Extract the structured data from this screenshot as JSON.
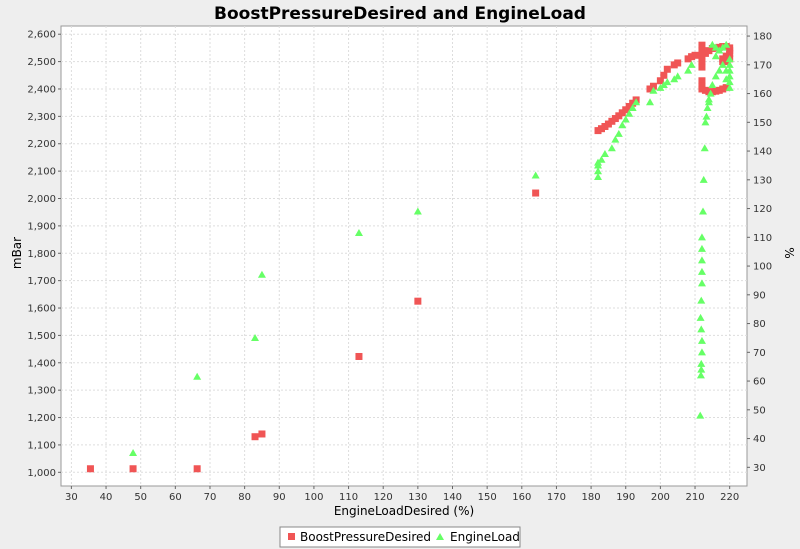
{
  "chart_data": {
    "type": "scatter",
    "title": "BoostPressureDesired and EngineLoad",
    "xlabel": "EngineLoadDesired (%)",
    "ylabel_left": "mBar",
    "ylabel_right": "%",
    "xlim": [
      27,
      225
    ],
    "ylim_left": [
      950,
      2630
    ],
    "ylim_right": [
      23.5,
      183.5
    ],
    "x_ticks": [
      "30",
      "40",
      "50",
      "60",
      "70",
      "80",
      "90",
      "100",
      "110",
      "120",
      "130",
      "140",
      "150",
      "160",
      "170",
      "180",
      "190",
      "200",
      "210",
      "220"
    ],
    "y_left_ticks": [
      "1,000",
      "1,100",
      "1,200",
      "1,300",
      "1,400",
      "1,500",
      "1,600",
      "1,700",
      "1,800",
      "1,900",
      "2,000",
      "2,100",
      "2,200",
      "2,300",
      "2,400",
      "2,500",
      "2,600"
    ],
    "y_right_ticks": [
      "30",
      "40",
      "50",
      "60",
      "70",
      "80",
      "90",
      "100",
      "110",
      "120",
      "130",
      "140",
      "150",
      "160",
      "170",
      "180"
    ],
    "grid": true,
    "legend_position": "bottom",
    "series": [
      {
        "name": "BoostPressureDesired",
        "axis": "left",
        "marker": "square",
        "color": "#f05555",
        "points": [
          [
            35.5,
            1013
          ],
          [
            47.8,
            1013
          ],
          [
            66.3,
            1013
          ],
          [
            83,
            1130
          ],
          [
            85,
            1140
          ],
          [
            113,
            1423
          ],
          [
            130,
            1625
          ],
          [
            164,
            2020
          ],
          [
            182,
            2248
          ],
          [
            183,
            2255
          ],
          [
            184,
            2263
          ],
          [
            185,
            2272
          ],
          [
            186,
            2282
          ],
          [
            187,
            2292
          ],
          [
            188,
            2302
          ],
          [
            189,
            2313
          ],
          [
            190,
            2324
          ],
          [
            191,
            2336
          ],
          [
            192,
            2348
          ],
          [
            193,
            2360
          ],
          [
            197,
            2400
          ],
          [
            198,
            2410
          ],
          [
            200,
            2430
          ],
          [
            201,
            2450
          ],
          [
            202,
            2472
          ],
          [
            204,
            2488
          ],
          [
            205,
            2495
          ],
          [
            208,
            2510
          ],
          [
            209,
            2518
          ],
          [
            210,
            2523
          ],
          [
            212,
            2560
          ],
          [
            212,
            2540
          ],
          [
            212,
            2520
          ],
          [
            212,
            2500
          ],
          [
            212,
            2480
          ],
          [
            212,
            2430
          ],
          [
            212,
            2410
          ],
          [
            212,
            2400
          ],
          [
            213,
            2395
          ],
          [
            214,
            2390
          ],
          [
            215,
            2390
          ],
          [
            216,
            2392
          ],
          [
            217,
            2395
          ],
          [
            218,
            2400
          ],
          [
            219,
            2405
          ],
          [
            213,
            2530
          ],
          [
            214,
            2540
          ],
          [
            215,
            2548
          ],
          [
            216,
            2550
          ],
          [
            217,
            2552
          ],
          [
            218,
            2555
          ],
          [
            219,
            2555
          ],
          [
            220,
            2550
          ],
          [
            220,
            2540
          ],
          [
            220,
            2530
          ],
          [
            219,
            2520
          ],
          [
            218,
            2510
          ],
          [
            218,
            2500
          ],
          [
            219,
            2500
          ],
          [
            220,
            2510
          ]
        ]
      },
      {
        "name": "EngineLoad",
        "axis": "right",
        "marker": "triangle",
        "color": "#66ff66",
        "points": [
          [
            47.8,
            35
          ],
          [
            66.3,
            61.5
          ],
          [
            83,
            75
          ],
          [
            85,
            97
          ],
          [
            113,
            111.5
          ],
          [
            130,
            119
          ],
          [
            164,
            131.5
          ],
          [
            182,
            131
          ],
          [
            182,
            133
          ],
          [
            182,
            135
          ],
          [
            182,
            136
          ],
          [
            183,
            137
          ],
          [
            184,
            139
          ],
          [
            186,
            141
          ],
          [
            187,
            144
          ],
          [
            188,
            146
          ],
          [
            189,
            149
          ],
          [
            190,
            151
          ],
          [
            191,
            153
          ],
          [
            192,
            155
          ],
          [
            193,
            157
          ],
          [
            197,
            157
          ],
          [
            198,
            161
          ],
          [
            200,
            162
          ],
          [
            201,
            163
          ],
          [
            202,
            164
          ],
          [
            204,
            165
          ],
          [
            205,
            166
          ],
          [
            208,
            168
          ],
          [
            209,
            170
          ],
          [
            211.5,
            48
          ],
          [
            211.7,
            62
          ],
          [
            211.8,
            64
          ],
          [
            211.8,
            66
          ],
          [
            212,
            70
          ],
          [
            212,
            74
          ],
          [
            211.8,
            78
          ],
          [
            211.6,
            82
          ],
          [
            211.8,
            88
          ],
          [
            212,
            94
          ],
          [
            212,
            98
          ],
          [
            212,
            102
          ],
          [
            212,
            106
          ],
          [
            212,
            110
          ],
          [
            212.3,
            119
          ],
          [
            212.5,
            130
          ],
          [
            212.8,
            141
          ],
          [
            213,
            150
          ],
          [
            213.3,
            152
          ],
          [
            213.6,
            155
          ],
          [
            214,
            157
          ],
          [
            214,
            158
          ],
          [
            214.5,
            160
          ],
          [
            215,
            163
          ],
          [
            216,
            166
          ],
          [
            217,
            168
          ],
          [
            216,
            173
          ],
          [
            217,
            175
          ],
          [
            218,
            176
          ],
          [
            219,
            177
          ],
          [
            215,
            177
          ],
          [
            216,
            176
          ],
          [
            218,
            170
          ],
          [
            219,
            168
          ],
          [
            220,
            168
          ],
          [
            220,
            166
          ],
          [
            220,
            164
          ],
          [
            220,
            162
          ],
          [
            219,
            165
          ],
          [
            220,
            170
          ],
          [
            220,
            172
          ]
        ]
      }
    ]
  }
}
